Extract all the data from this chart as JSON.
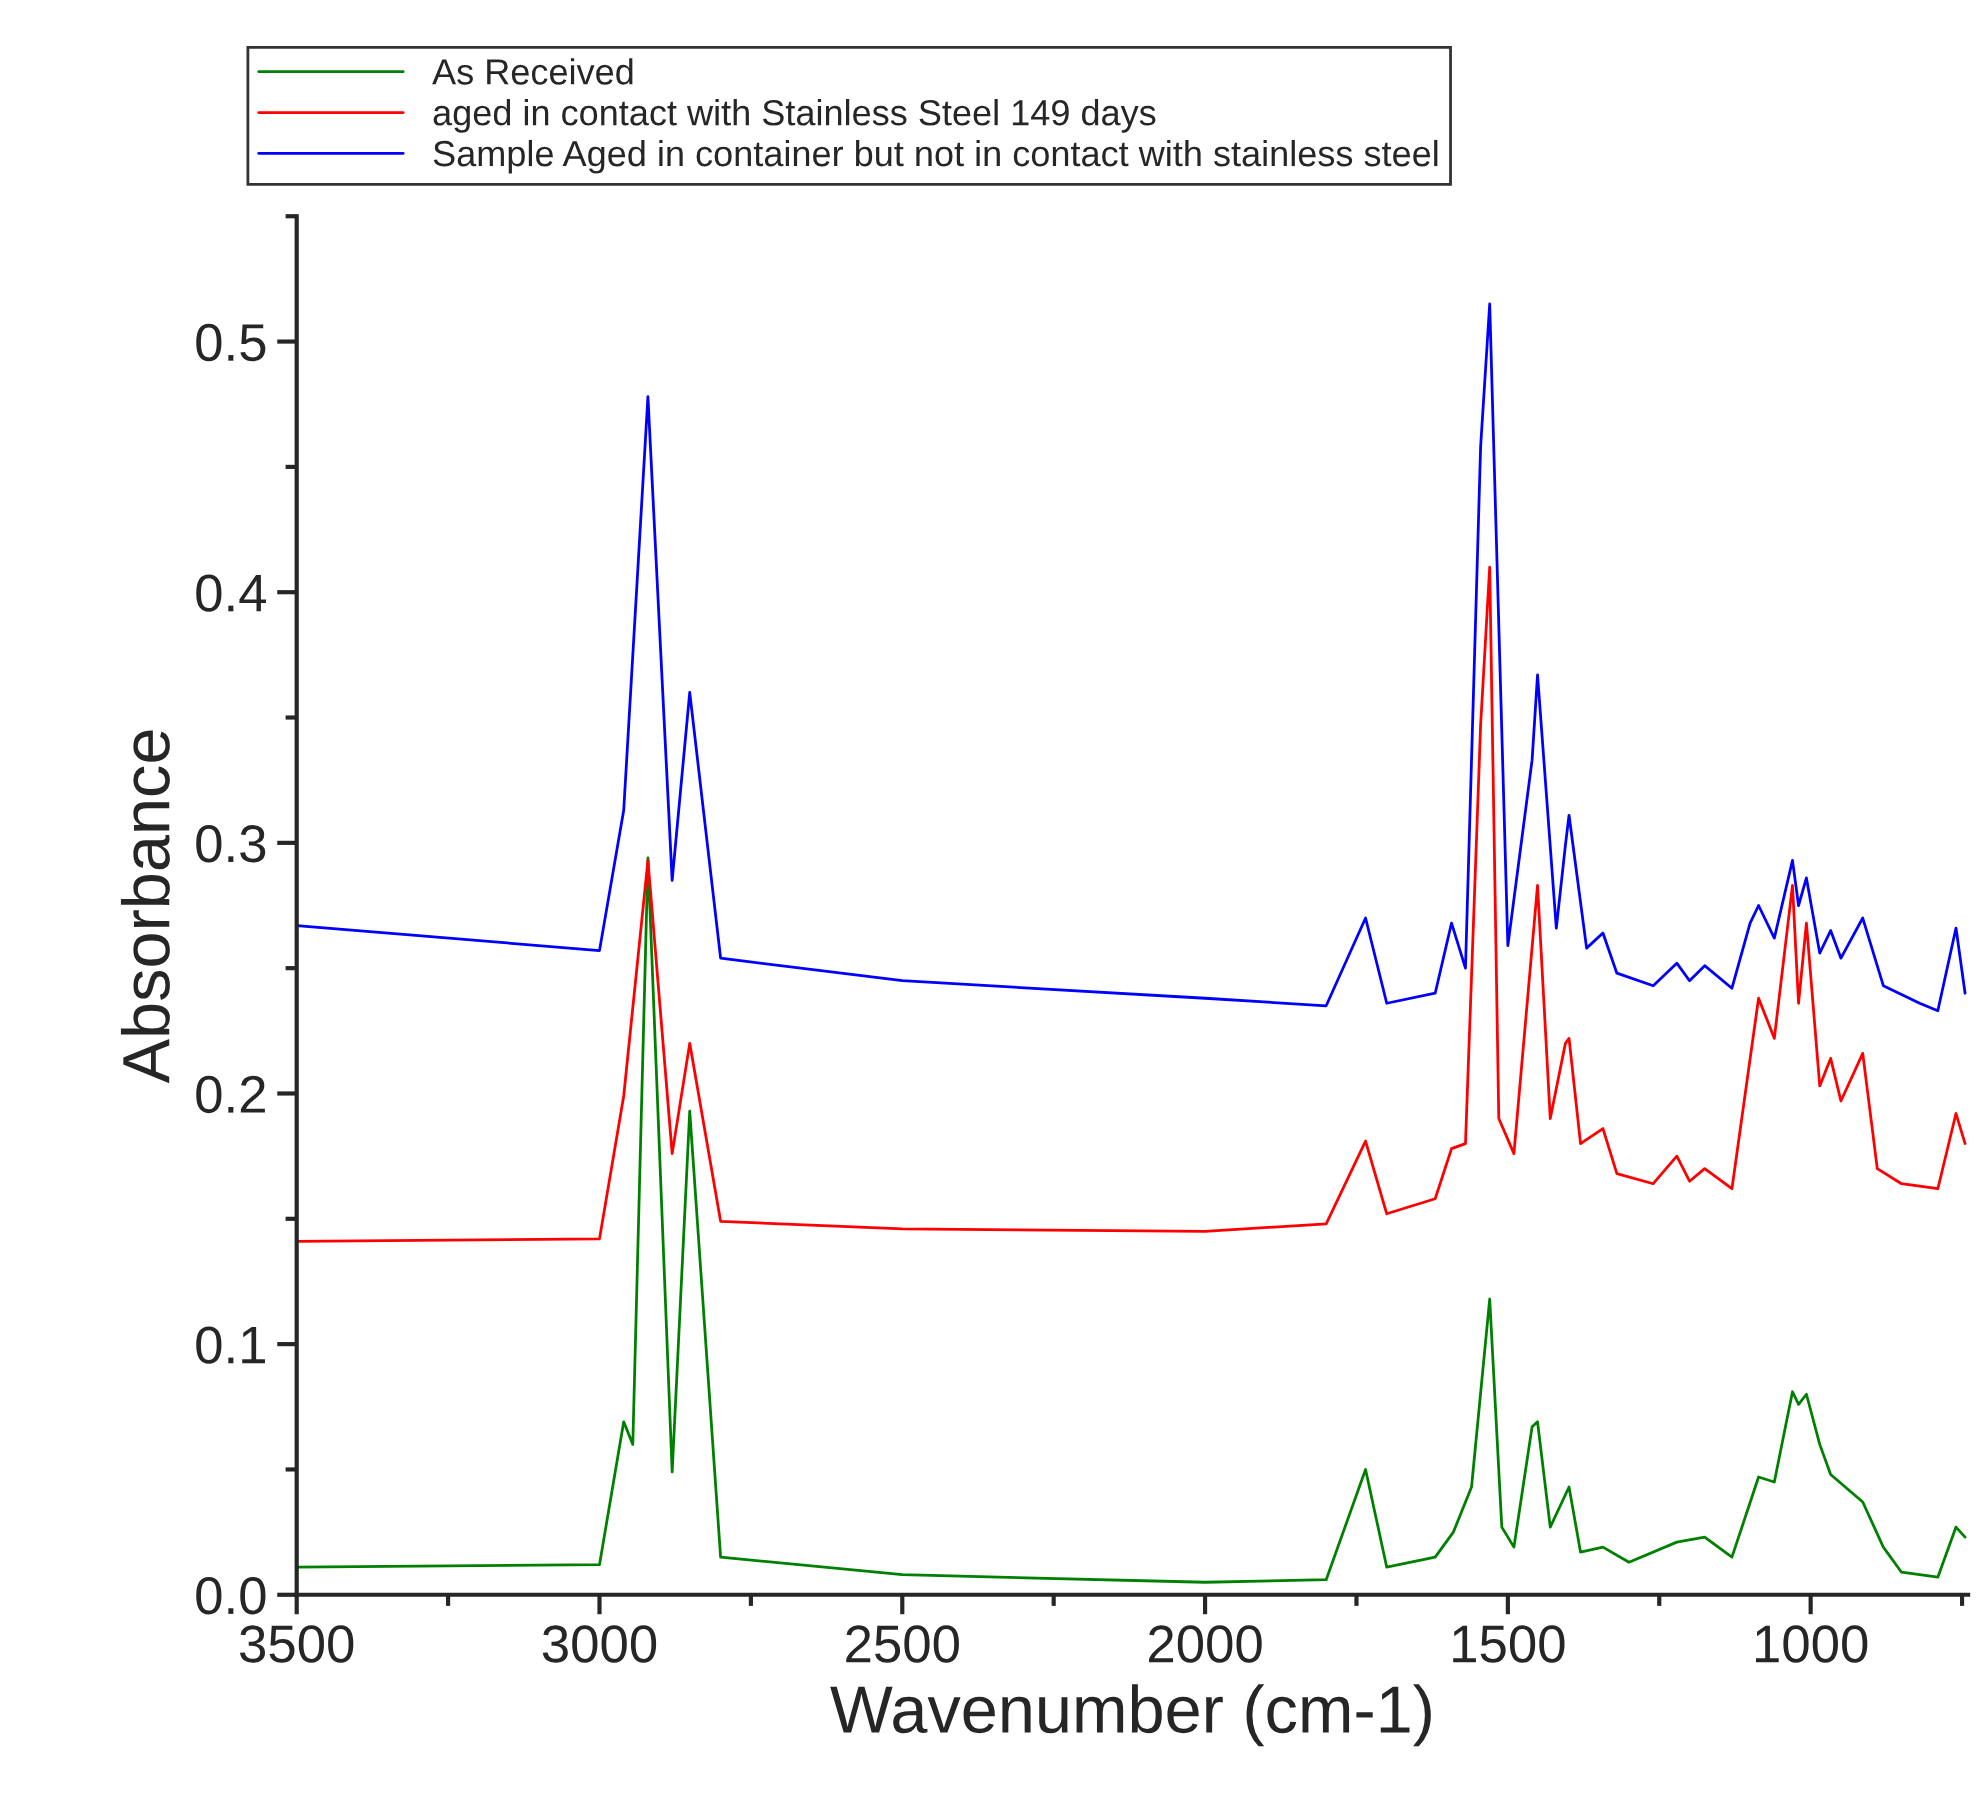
{
  "chart_data": {
    "type": "line",
    "xlabel": "Wavenumber (cm-1)",
    "ylabel": "Absorbance",
    "xlim": [
      3500,
      740
    ],
    "xticks": [
      3500,
      3000,
      2500,
      2000,
      1500,
      1000
    ],
    "ylim": [
      0,
      0.55
    ],
    "yticks": [
      {
        "value": 0,
        "label": "0.0"
      },
      0.1,
      0.2,
      0.3,
      0.4,
      0.5
    ],
    "grid": false,
    "legend": "top",
    "marker": "none",
    "line_style": "solid",
    "series": [
      {
        "name": "As Received",
        "color": "#008000",
        "x": [
          3500,
          3000,
          2960,
          2945,
          2920,
          2880,
          2851,
          2800,
          2500,
          2000,
          1800,
          1735,
          1700,
          1620,
          1590,
          1560,
          1530,
          1510,
          1490,
          1460,
          1451,
          1430,
          1399,
          1380,
          1343,
          1300,
          1221,
          1175,
          1130,
          1086,
          1060,
          1030,
          1020,
          1007,
          985,
          967,
          914,
          880,
          850,
          790,
          760,
          745
        ],
        "values": [
          0.011,
          0.012,
          0.069,
          0.06,
          0.294,
          0.049,
          0.193,
          0.015,
          0.008,
          0.005,
          0.006,
          0.05,
          0.011,
          0.015,
          0.025,
          0.043,
          0.118,
          0.027,
          0.019,
          0.067,
          0.069,
          0.027,
          0.043,
          0.017,
          0.019,
          0.013,
          0.021,
          0.023,
          0.015,
          0.047,
          0.045,
          0.081,
          0.076,
          0.08,
          0.06,
          0.048,
          0.037,
          0.019,
          0.009,
          0.007,
          0.027,
          0.023
        ]
      },
      {
        "name": "aged in contact with Stainless Steel 149 days",
        "color": "#ff0000",
        "x": [
          3500,
          3000,
          2960,
          2920,
          2880,
          2851,
          2800,
          2500,
          2000,
          1800,
          1735,
          1700,
          1620,
          1593,
          1570,
          1545,
          1530,
          1515,
          1490,
          1451,
          1430,
          1405,
          1399,
          1380,
          1343,
          1320,
          1260,
          1221,
          1200,
          1175,
          1130,
          1086,
          1060,
          1030,
          1020,
          1007,
          985,
          967,
          950,
          914,
          890,
          850,
          790,
          760,
          745
        ],
        "values": [
          0.141,
          0.142,
          0.199,
          0.293,
          0.176,
          0.22,
          0.149,
          0.146,
          0.145,
          0.148,
          0.181,
          0.152,
          0.158,
          0.178,
          0.18,
          0.347,
          0.41,
          0.19,
          0.176,
          0.283,
          0.19,
          0.22,
          0.222,
          0.18,
          0.186,
          0.168,
          0.164,
          0.175,
          0.165,
          0.17,
          0.162,
          0.238,
          0.222,
          0.283,
          0.236,
          0.268,
          0.203,
          0.214,
          0.197,
          0.216,
          0.17,
          0.164,
          0.162,
          0.192,
          0.18
        ]
      },
      {
        "name": "Sample Aged in container but not in contact with stainless steel",
        "color": "#0000ff",
        "x": [
          3500,
          3000,
          2960,
          2920,
          2880,
          2851,
          2800,
          2500,
          2000,
          1800,
          1735,
          1700,
          1620,
          1593,
          1570,
          1545,
          1530,
          1500,
          1460,
          1451,
          1420,
          1405,
          1399,
          1370,
          1343,
          1320,
          1260,
          1221,
          1200,
          1175,
          1130,
          1100,
          1086,
          1060,
          1030,
          1020,
          1007,
          985,
          967,
          950,
          914,
          880,
          820,
          790,
          760,
          745
        ],
        "values": [
          0.267,
          0.257,
          0.313,
          0.478,
          0.285,
          0.36,
          0.254,
          0.245,
          0.238,
          0.235,
          0.27,
          0.236,
          0.24,
          0.268,
          0.25,
          0.458,
          0.515,
          0.259,
          0.333,
          0.367,
          0.266,
          0.299,
          0.311,
          0.258,
          0.264,
          0.248,
          0.243,
          0.252,
          0.245,
          0.251,
          0.242,
          0.268,
          0.275,
          0.262,
          0.293,
          0.275,
          0.286,
          0.256,
          0.265,
          0.254,
          0.27,
          0.243,
          0.236,
          0.233,
          0.266,
          0.24
        ]
      }
    ]
  }
}
